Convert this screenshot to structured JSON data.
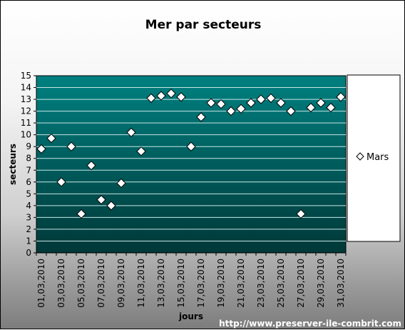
{
  "chart_data": {
    "type": "scatter",
    "title": "Mer par secteurs",
    "xlabel": "jours",
    "ylabel": "secteurs",
    "ylim": [
      0,
      15
    ],
    "yticks": [
      0,
      1,
      2,
      3,
      4,
      5,
      6,
      7,
      8,
      9,
      10,
      11,
      12,
      13,
      14,
      15
    ],
    "grid": true,
    "legend_position": "right",
    "marker": "diamond",
    "x": [
      "01,03,2010",
      "02,03,2010",
      "03,03,2010",
      "04,03,2010",
      "05,03,2010",
      "06,03,2010",
      "07,03,2010",
      "08,03,2010",
      "09,03,2010",
      "10,03,2010",
      "11,03,2010",
      "12,03,2010",
      "13,03,2010",
      "14,03,2010",
      "15,03,2010",
      "16,03,2010",
      "17,03,2010",
      "18,03,2010",
      "19,03,2010",
      "20,03,2010",
      "21,03,2010",
      "22,03,2010",
      "23,03,2010",
      "24,03,2010",
      "25,03,2010",
      "26,03,2010",
      "27,03,2010",
      "28,03,2010",
      "29,03,2010",
      "30,03,2010",
      "31,03,2010"
    ],
    "xtick_labels": [
      "01,03,2010",
      "03,03,2010",
      "05,03,2010",
      "07,03,2010",
      "09,03,2010",
      "11,03,2010",
      "13,03,2010",
      "15,03,2010",
      "17,03,2010",
      "19,03,2010",
      "21,03,2010",
      "23,03,2010",
      "25,03,2010",
      "27,03,2010",
      "29,03,2010",
      "31,03,2010"
    ],
    "series": [
      {
        "name": "Mars",
        "values": [
          8.8,
          9.7,
          6.0,
          9.0,
          3.3,
          7.4,
          4.5,
          4.0,
          5.9,
          10.2,
          8.6,
          13.1,
          13.3,
          13.5,
          13.2,
          9.0,
          11.5,
          12.7,
          12.6,
          12.0,
          12.2,
          12.7,
          13.0,
          13.1,
          12.7,
          12.0,
          3.3,
          12.3,
          12.7,
          12.3,
          13.2
        ]
      }
    ],
    "colors": {
      "plot_top": "#008080",
      "plot_bottom": "#003838",
      "grid": "#c8e6e6",
      "marker_fill": "#ffffff",
      "marker_stroke": "#000000"
    }
  },
  "footer": {
    "credit": "http://www.preserver-ile-combrit.com"
  }
}
